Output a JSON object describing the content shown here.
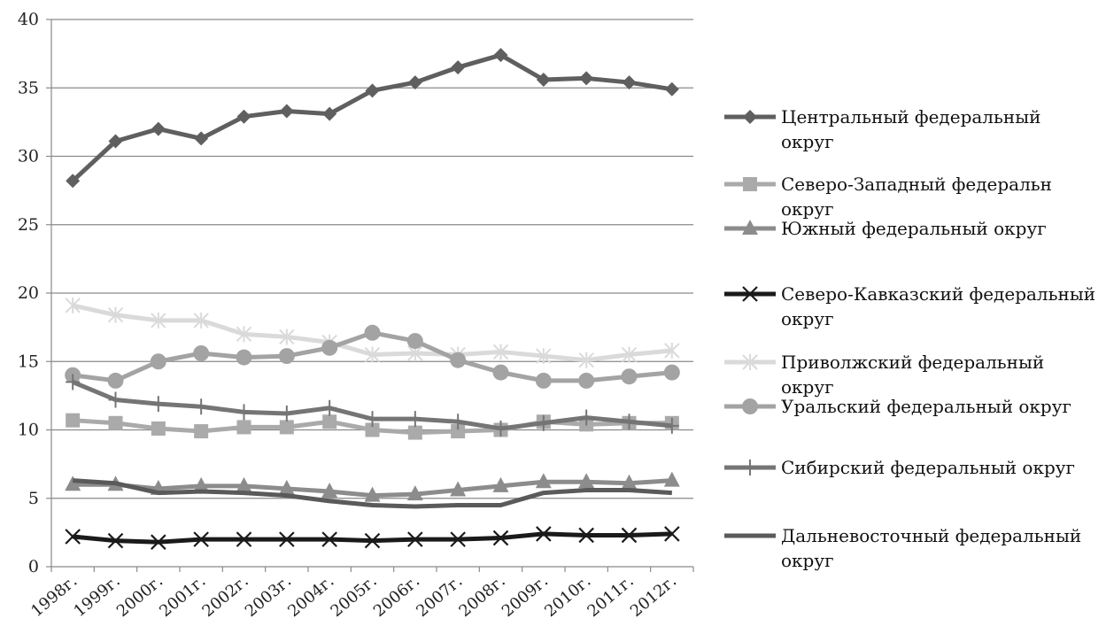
{
  "chart_data": {
    "type": "line",
    "title": "",
    "xlabel": "",
    "ylabel": "",
    "ylim": [
      0,
      40
    ],
    "yticks": [
      0,
      5,
      10,
      15,
      20,
      25,
      30,
      35,
      40
    ],
    "grid": "horizontal",
    "legend_position": "right",
    "categories": [
      "1998г.",
      "1999г.",
      "2000г.",
      "2001г.",
      "2002г.",
      "2003г.",
      "2004г.",
      "2005г.",
      "2006г.",
      "2007г.",
      "2008г.",
      "2009г.",
      "2010г.",
      "2011г.",
      "2012г."
    ],
    "series": [
      {
        "name": "Центральный федеральный округ",
        "legend_lines": [
          "Центральный федеральный",
          "округ"
        ],
        "marker": "diamond",
        "color": "#5f5f5f",
        "values": [
          28.2,
          31.1,
          32.0,
          31.3,
          32.9,
          33.3,
          33.1,
          34.8,
          35.4,
          36.5,
          37.4,
          35.6,
          35.7,
          35.4,
          34.9
        ]
      },
      {
        "name": "Северо-Западный федеральн округ",
        "legend_lines": [
          "Северо-Западный федеральн",
          "округ"
        ],
        "marker": "square",
        "color": "#aaaaaa",
        "values": [
          10.7,
          10.5,
          10.1,
          9.9,
          10.2,
          10.2,
          10.6,
          10.0,
          9.8,
          9.9,
          10.0,
          10.6,
          10.4,
          10.5,
          10.5
        ]
      },
      {
        "name": "Южный федеральный округ",
        "legend_lines": [
          "Южный федеральный округ"
        ],
        "marker": "triangle",
        "color": "#8c8c8c",
        "values": [
          6.0,
          6.0,
          5.7,
          5.9,
          5.9,
          5.7,
          5.5,
          5.2,
          5.3,
          5.6,
          5.9,
          6.2,
          6.2,
          6.1,
          6.3
        ]
      },
      {
        "name": "Северо-Кавказский федеральный округ",
        "legend_lines": [
          "Северо-Кавказский федеральный",
          "округ"
        ],
        "marker": "x",
        "color": "#1a1a1a",
        "values": [
          2.2,
          1.9,
          1.8,
          2.0,
          2.0,
          2.0,
          2.0,
          1.9,
          2.0,
          2.0,
          2.1,
          2.4,
          2.3,
          2.3,
          2.4
        ]
      },
      {
        "name": "Приволжский федеральный округ",
        "legend_lines": [
          "Приволжский федеральный",
          "округ"
        ],
        "marker": "asterisk",
        "color": "#dadada",
        "values": [
          19.1,
          18.4,
          18.0,
          18.0,
          17.0,
          16.8,
          16.4,
          15.5,
          15.6,
          15.5,
          15.7,
          15.4,
          15.1,
          15.5,
          15.8
        ]
      },
      {
        "name": "Уральский федеральный округ",
        "legend_lines": [
          "Уральский федеральный округ"
        ],
        "marker": "circle",
        "color": "#a3a3a3",
        "values": [
          14.0,
          13.6,
          15.0,
          15.6,
          15.3,
          15.4,
          16.0,
          17.1,
          16.5,
          15.1,
          14.2,
          13.6,
          13.6,
          13.9,
          14.2
        ]
      },
      {
        "name": "Сибирский федеральный округ",
        "legend_lines": [
          "Сибирский федеральный округ"
        ],
        "marker": "plus",
        "color": "#757575",
        "values": [
          13.5,
          12.2,
          11.9,
          11.7,
          11.3,
          11.2,
          11.6,
          10.8,
          10.8,
          10.6,
          10.1,
          10.5,
          10.9,
          10.6,
          10.3
        ]
      },
      {
        "name": "Дальневосточный федеральный округ",
        "legend_lines": [
          "Дальневосточный федеральный",
          "округ"
        ],
        "marker": "none",
        "color": "#5a5a5a",
        "values": [
          6.3,
          6.1,
          5.4,
          5.5,
          5.4,
          5.2,
          4.8,
          4.5,
          4.4,
          4.5,
          4.5,
          5.4,
          5.6,
          5.6,
          5.4
        ]
      }
    ]
  }
}
